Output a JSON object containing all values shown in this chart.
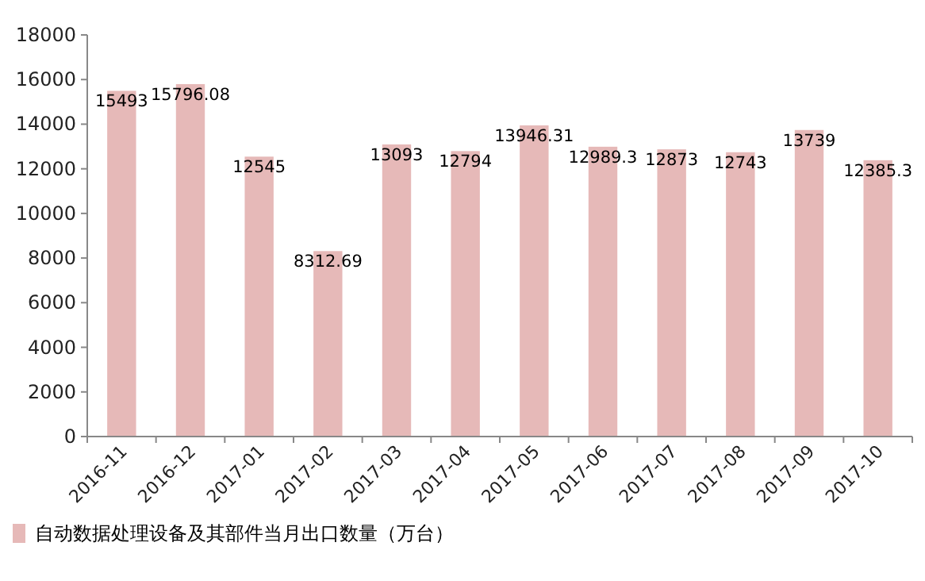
{
  "chart_data": {
    "type": "bar",
    "categories": [
      "2016-11",
      "2016-12",
      "2017-01",
      "2017-02",
      "2017-03",
      "2017-04",
      "2017-05",
      "2017-06",
      "2017-07",
      "2017-08",
      "2017-09",
      "2017-10"
    ],
    "series": [
      {
        "name": "自动数据处理设备及其部件当月出口数量（万台）",
        "color": "#e6b9b8",
        "values": [
          15493,
          15796.08,
          12545,
          8312.69,
          13093,
          12794,
          13946.31,
          12989.3,
          12873,
          12743,
          13739,
          12385.3
        ]
      }
    ],
    "ylim": [
      0,
      18000
    ],
    "yticks": [
      0,
      2000,
      4000,
      6000,
      8000,
      10000,
      12000,
      14000,
      16000,
      18000
    ],
    "data_labels": true,
    "legend": "bottom"
  }
}
